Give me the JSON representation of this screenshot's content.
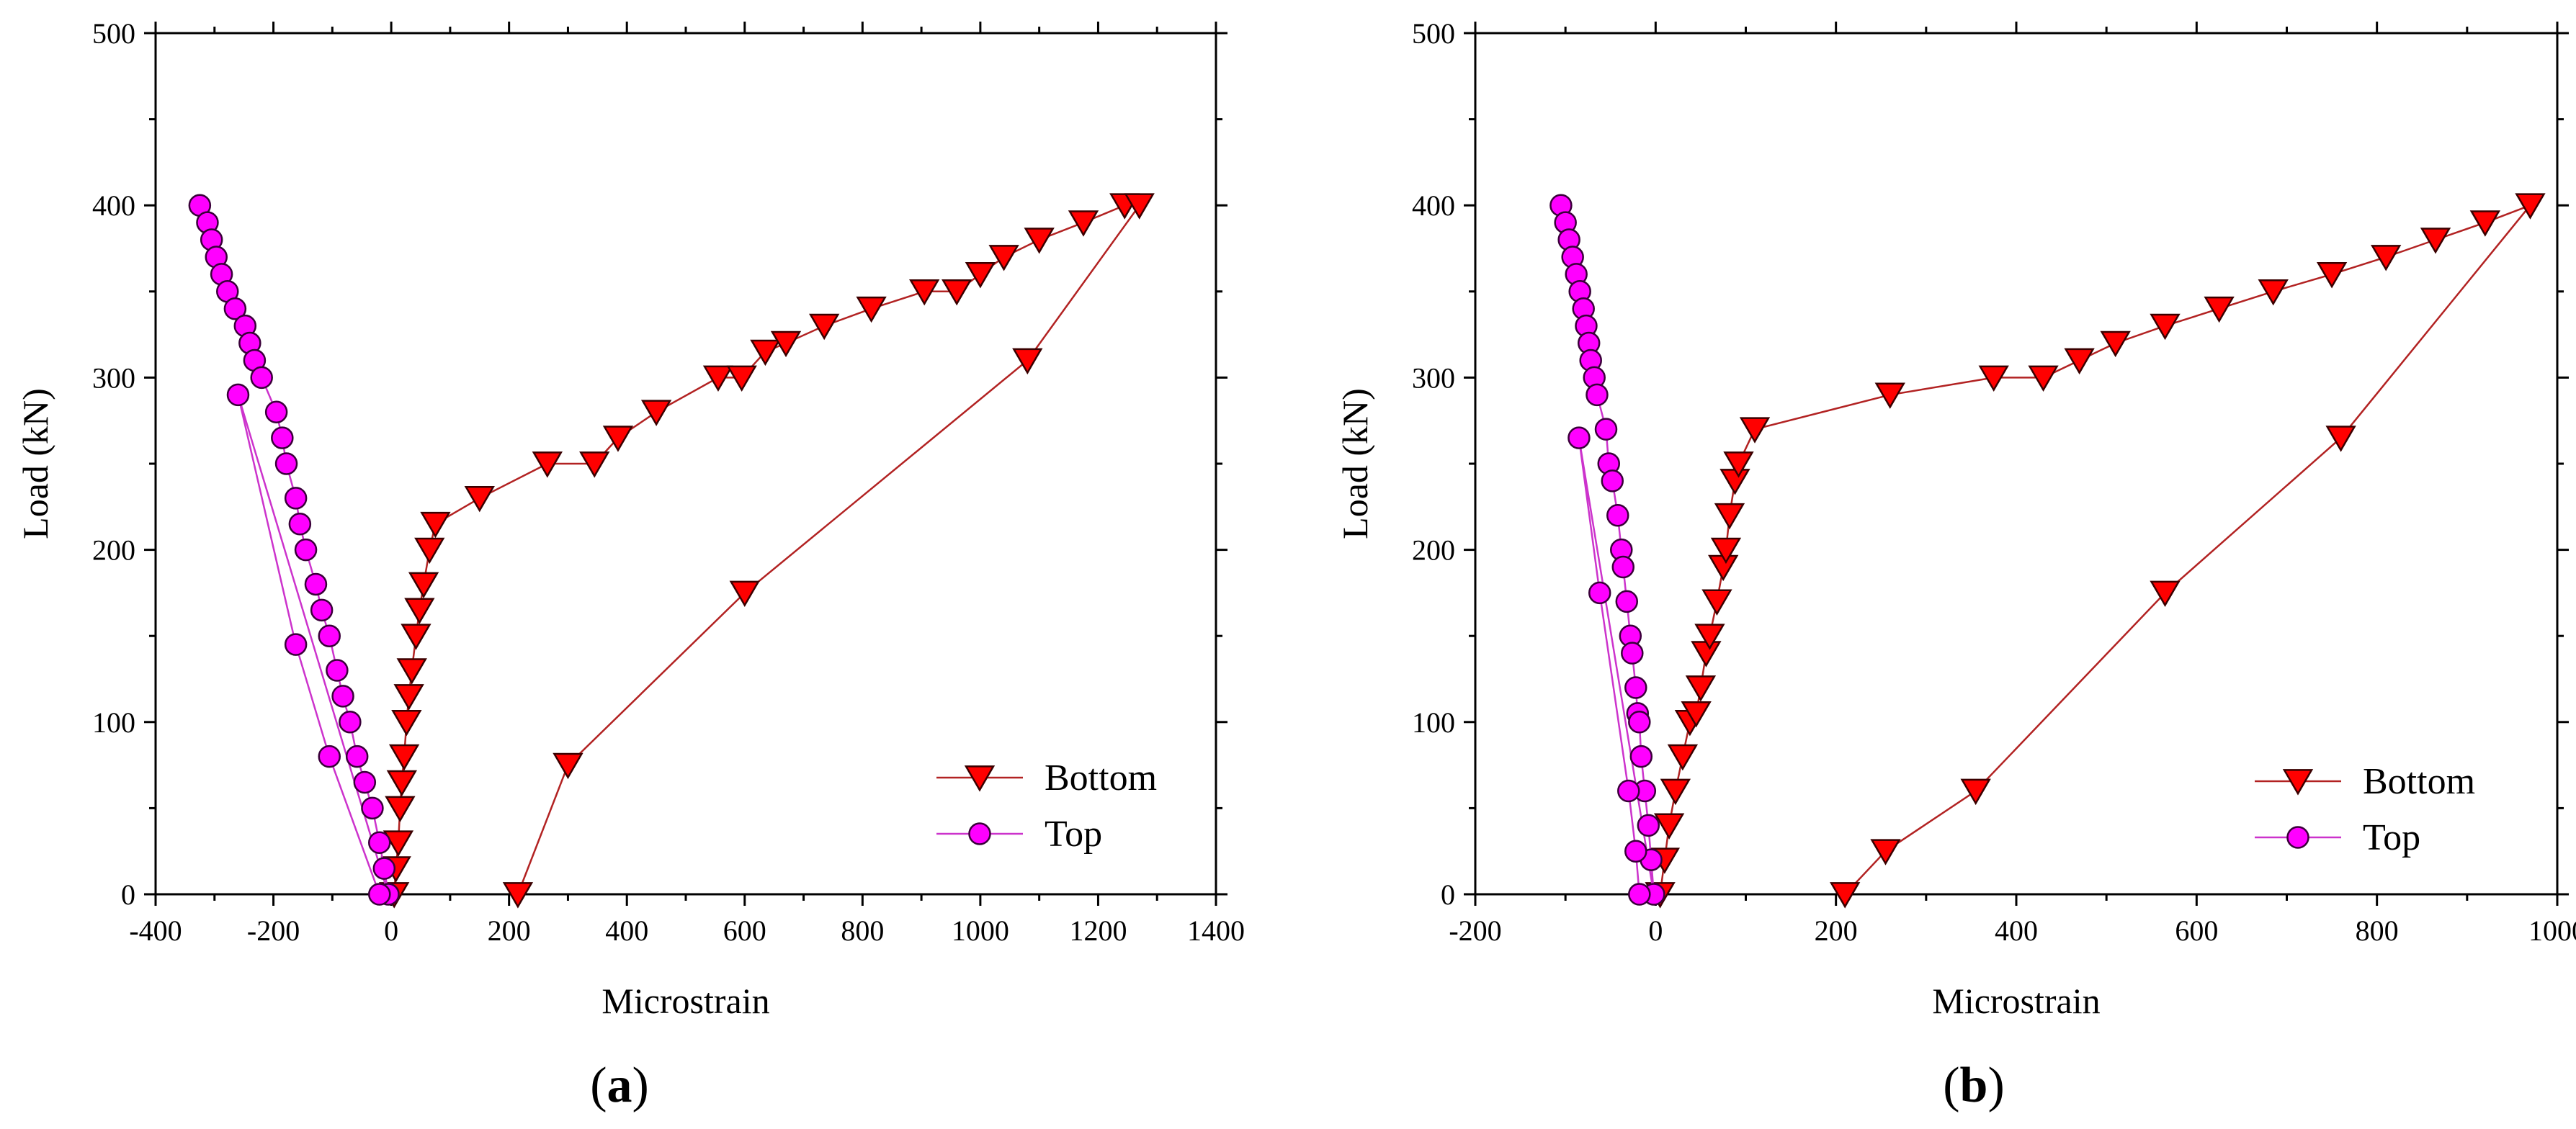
{
  "chart_data": [
    {
      "type": "scatter",
      "panel_label": "(a)",
      "xlabel": "Microstrain",
      "ylabel": "Load (kN)",
      "xlim": [
        -400,
        1400
      ],
      "ylim": [
        0,
        500
      ],
      "xticks": [
        -400,
        -200,
        0,
        200,
        400,
        600,
        800,
        1000,
        1200,
        1400
      ],
      "yticks": [
        0,
        100,
        200,
        300,
        400,
        500
      ],
      "legend_position": "bottom-right",
      "series": [
        {
          "name": "Bottom",
          "marker": "triangle-down",
          "color": "#ff0000",
          "line_color": "#b22222",
          "points": [
            [
              5,
              0
            ],
            [
              8,
              15
            ],
            [
              12,
              30
            ],
            [
              15,
              50
            ],
            [
              18,
              65
            ],
            [
              22,
              80
            ],
            [
              26,
              100
            ],
            [
              30,
              115
            ],
            [
              35,
              130
            ],
            [
              42,
              150
            ],
            [
              48,
              165
            ],
            [
              55,
              180
            ],
            [
              65,
              200
            ],
            [
              75,
              215
            ],
            [
              150,
              230
            ],
            [
              265,
              250
            ],
            [
              345,
              250
            ],
            [
              385,
              265
            ],
            [
              450,
              280
            ],
            [
              555,
              300
            ],
            [
              595,
              300
            ],
            [
              635,
              315
            ],
            [
              670,
              320
            ],
            [
              735,
              330
            ],
            [
              815,
              340
            ],
            [
              905,
              350
            ],
            [
              960,
              350
            ],
            [
              1000,
              360
            ],
            [
              1040,
              370
            ],
            [
              1100,
              380
            ],
            [
              1175,
              390
            ],
            [
              1245,
              400
            ],
            [
              1270,
              400
            ],
            [
              1080,
              310
            ],
            [
              600,
              175
            ],
            [
              300,
              75
            ],
            [
              215,
              0
            ]
          ]
        },
        {
          "name": "Top",
          "marker": "circle",
          "color": "#ff00ff",
          "line_color": "#cc33cc",
          "points": [
            [
              -325,
              400
            ],
            [
              -312,
              390
            ],
            [
              -305,
              380
            ],
            [
              -297,
              370
            ],
            [
              -288,
              360
            ],
            [
              -278,
              350
            ],
            [
              -265,
              340
            ],
            [
              -248,
              330
            ],
            [
              -240,
              320
            ],
            [
              -232,
              310
            ],
            [
              -220,
              300
            ],
            [
              -195,
              280
            ],
            [
              -185,
              265
            ],
            [
              -178,
              250
            ],
            [
              -162,
              230
            ],
            [
              -155,
              215
            ],
            [
              -145,
              200
            ],
            [
              -128,
              180
            ],
            [
              -118,
              165
            ],
            [
              -105,
              150
            ],
            [
              -92,
              130
            ],
            [
              -82,
              115
            ],
            [
              -70,
              100
            ],
            [
              -58,
              80
            ],
            [
              -45,
              65
            ],
            [
              -32,
              50
            ],
            [
              -20,
              30
            ],
            [
              -12,
              15
            ],
            [
              -5,
              0
            ],
            [
              -260,
              290
            ],
            [
              -162,
              145
            ],
            [
              -105,
              80
            ],
            [
              -20,
              0
            ]
          ]
        }
      ]
    },
    {
      "type": "scatter",
      "panel_label": "(b)",
      "xlabel": "Microstrain",
      "ylabel": "Load (kN)",
      "xlim": [
        -200,
        1000
      ],
      "ylim": [
        0,
        500
      ],
      "xticks": [
        -200,
        0,
        200,
        400,
        600,
        800,
        1000
      ],
      "yticks": [
        0,
        100,
        200,
        300,
        400,
        500
      ],
      "legend_position": "bottom-right",
      "series": [
        {
          "name": "Bottom",
          "marker": "triangle-down",
          "color": "#ff0000",
          "line_color": "#b22222",
          "points": [
            [
              5,
              0
            ],
            [
              10,
              20
            ],
            [
              15,
              40
            ],
            [
              22,
              60
            ],
            [
              30,
              80
            ],
            [
              38,
              100
            ],
            [
              45,
              105
            ],
            [
              50,
              120
            ],
            [
              56,
              140
            ],
            [
              60,
              150
            ],
            [
              68,
              170
            ],
            [
              75,
              190
            ],
            [
              78,
              200
            ],
            [
              82,
              220
            ],
            [
              88,
              240
            ],
            [
              92,
              250
            ],
            [
              110,
              270
            ],
            [
              260,
              290
            ],
            [
              375,
              300
            ],
            [
              430,
              300
            ],
            [
              470,
              310
            ],
            [
              510,
              320
            ],
            [
              565,
              330
            ],
            [
              625,
              340
            ],
            [
              685,
              350
            ],
            [
              750,
              360
            ],
            [
              810,
              370
            ],
            [
              865,
              380
            ],
            [
              920,
              390
            ],
            [
              970,
              400
            ],
            [
              760,
              265
            ],
            [
              565,
              175
            ],
            [
              355,
              60
            ],
            [
              255,
              25
            ],
            [
              210,
              0
            ]
          ]
        },
        {
          "name": "Top",
          "marker": "circle",
          "color": "#ff00ff",
          "line_color": "#cc33cc",
          "points": [
            [
              -105,
              400
            ],
            [
              -100,
              390
            ],
            [
              -96,
              380
            ],
            [
              -92,
              370
            ],
            [
              -88,
              360
            ],
            [
              -84,
              350
            ],
            [
              -80,
              340
            ],
            [
              -77,
              330
            ],
            [
              -74,
              320
            ],
            [
              -72,
              310
            ],
            [
              -68,
              300
            ],
            [
              -65,
              290
            ],
            [
              -55,
              270
            ],
            [
              -52,
              250
            ],
            [
              -48,
              240
            ],
            [
              -42,
              220
            ],
            [
              -38,
              200
            ],
            [
              -36,
              190
            ],
            [
              -32,
              170
            ],
            [
              -28,
              150
            ],
            [
              -26,
              140
            ],
            [
              -22,
              120
            ],
            [
              -20,
              105
            ],
            [
              -18,
              100
            ],
            [
              -16,
              80
            ],
            [
              -12,
              60
            ],
            [
              -8,
              40
            ],
            [
              -5,
              20
            ],
            [
              -2,
              0
            ],
            [
              -85,
              265
            ],
            [
              -62,
              175
            ],
            [
              -30,
              60
            ],
            [
              -22,
              25
            ],
            [
              -18,
              0
            ]
          ]
        }
      ]
    }
  ]
}
